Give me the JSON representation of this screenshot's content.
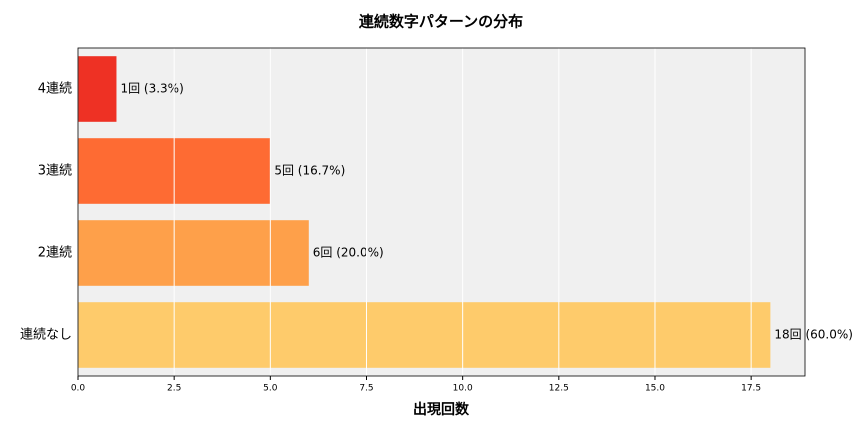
{
  "chart_data": {
    "type": "barh",
    "title": "連続数字パターンの分布",
    "x_label": "出現回数",
    "categories": [
      "4連続",
      "3連続",
      "2連続",
      "連続なし"
    ],
    "values": [
      1,
      5,
      6,
      18
    ],
    "value_labels": [
      "1回 (3.3%)",
      "5回 (16.7%)",
      "6回 (20.0%)",
      "18回 (60.0%)"
    ],
    "colors": [
      "#ee3124",
      "#fe6b33",
      "#fea04a",
      "#fecb6b"
    ],
    "xlim": [
      0,
      18.9
    ],
    "xticks": [
      {
        "value": 0,
        "label": "0.0"
      },
      {
        "value": 2.5,
        "label": "2.5"
      },
      {
        "value": 5,
        "label": "5.0"
      },
      {
        "value": 7.5,
        "label": "7.5"
      },
      {
        "value": 10,
        "label": "10.0"
      },
      {
        "value": 12.5,
        "label": "12.5"
      },
      {
        "value": 15,
        "label": "15.0"
      },
      {
        "value": 17.5,
        "label": "17.5"
      }
    ],
    "grid": true
  }
}
